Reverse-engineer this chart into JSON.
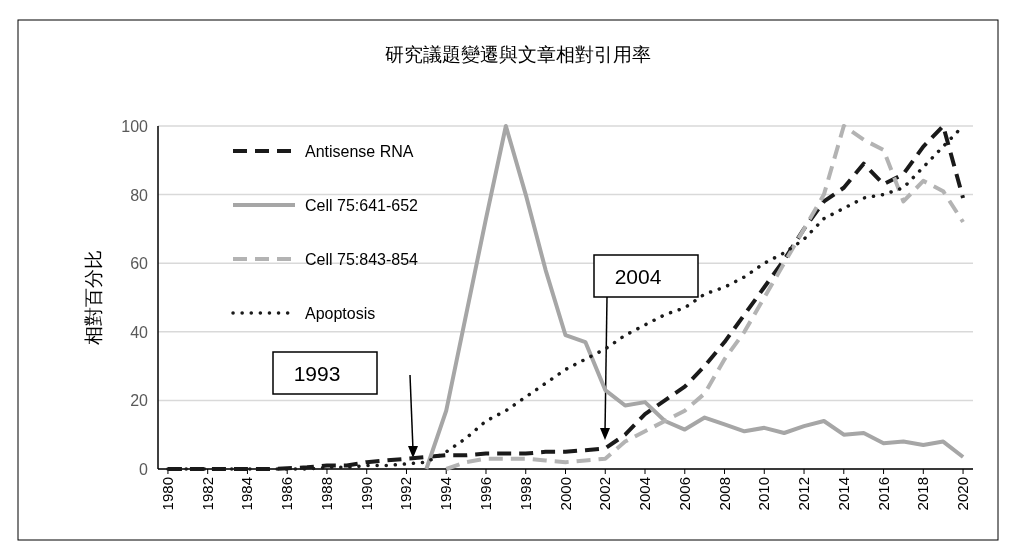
{
  "chart_data": {
    "type": "line",
    "title": "研究議題變遷與文章相對引用率",
    "ylabel": "相對百分比",
    "x": [
      1980,
      1981,
      1982,
      1983,
      1984,
      1985,
      1986,
      1987,
      1988,
      1989,
      1990,
      1991,
      1992,
      1993,
      1994,
      1995,
      1996,
      1997,
      1998,
      1999,
      2000,
      2001,
      2002,
      2003,
      2004,
      2005,
      2006,
      2007,
      2008,
      2009,
      2010,
      2011,
      2012,
      2013,
      2014,
      2015,
      2016,
      2017,
      2018,
      2019,
      2020
    ],
    "series": [
      {
        "name": "Antisense RNA",
        "color": "#1a1a1a",
        "line_style": "dashed",
        "values": [
          0,
          0,
          0,
          0,
          0,
          0,
          0.2,
          0.5,
          1,
          1,
          2,
          2.5,
          3,
          3.5,
          4,
          4,
          4.5,
          4.5,
          4.5,
          5,
          5,
          5.5,
          6,
          10,
          16,
          20,
          24,
          30,
          37,
          45,
          53,
          61,
          70,
          78,
          82,
          89,
          83,
          86,
          94,
          100,
          79
        ]
      },
      {
        "name": "Cell 75:641-652",
        "color": "#a6a6a6",
        "line_style": "solid",
        "values": [
          null,
          null,
          null,
          null,
          null,
          null,
          null,
          null,
          null,
          null,
          null,
          null,
          null,
          0,
          17,
          45,
          73,
          100,
          80,
          58,
          39,
          37,
          23,
          18.5,
          19.5,
          14,
          11.5,
          15,
          13,
          11,
          12,
          10.5,
          12.5,
          14,
          10,
          10.5,
          7.5,
          8,
          7,
          8,
          3.5
        ]
      },
      {
        "name": "Cell 75:843-854",
        "color": "#b3b3b3",
        "line_style": "dashed",
        "values": [
          null,
          null,
          null,
          null,
          null,
          null,
          null,
          null,
          null,
          null,
          null,
          null,
          null,
          null,
          0,
          2,
          3,
          3,
          3,
          2.5,
          2,
          2.5,
          3,
          8,
          11,
          14,
          17,
          22,
          32,
          40,
          50,
          60,
          70,
          80,
          100,
          96,
          93,
          78,
          84,
          81,
          72
        ]
      },
      {
        "name": "Apoptosis",
        "color": "#1a1a1a",
        "line_style": "dotted",
        "values": [
          0,
          0,
          0,
          0,
          0,
          0,
          0,
          0,
          0.5,
          0.5,
          1,
          1,
          1.5,
          2,
          5,
          9,
          14,
          17,
          21,
          25,
          29,
          32,
          35,
          39,
          42,
          45,
          47,
          51,
          53,
          56,
          60,
          63,
          67,
          73,
          76,
          79,
          80,
          82,
          88,
          94,
          100
        ]
      }
    ],
    "xlim": [
      1979.5,
      2020.5
    ],
    "xticks": [
      1980,
      1982,
      1984,
      1986,
      1988,
      1990,
      1992,
      1994,
      1996,
      1998,
      2000,
      2002,
      2004,
      2006,
      2008,
      2010,
      2012,
      2014,
      2016,
      2018,
      2020
    ],
    "ylim": [
      0,
      100
    ],
    "yticks": [
      0,
      20,
      40,
      60,
      80,
      100
    ],
    "grid": "y",
    "legend": "top left",
    "annotations": [
      "1993",
      "2004"
    ]
  }
}
